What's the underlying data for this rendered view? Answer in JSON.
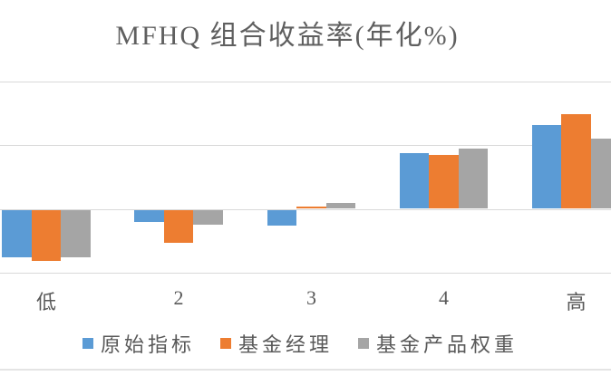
{
  "title": "MFHQ 组合收益率(年化%)",
  "chart_data": {
    "type": "bar",
    "title": "MFHQ 组合收益率(年化%)",
    "categories": [
      "低",
      "2",
      "3",
      "4",
      "高"
    ],
    "series": [
      {
        "name": "原始指标",
        "color": "#5B9BD5",
        "values": [
          -0.74,
          -0.19,
          -0.25,
          0.88,
          1.32
        ]
      },
      {
        "name": "基金经理",
        "color": "#ED7D31",
        "values": [
          -0.81,
          -0.52,
          0.03,
          0.85,
          1.48
        ]
      },
      {
        "name": "基金产品权重",
        "color": "#A5A5A5",
        "values": [
          -0.75,
          -0.24,
          0.09,
          0.95,
          1.1
        ]
      }
    ],
    "xlabel": "",
    "ylabel": "",
    "value_note": "y-axis tick labels are cropped out of the screenshot; values estimated in gridline units (1 unit = one gridline interval)",
    "gridlines_units": [
      2,
      1,
      0,
      -1
    ],
    "ylim": [
      -1.2,
      3.3
    ],
    "grid": true,
    "legend_position": "bottom",
    "plot_cropped_edges": "left and right bars clipped by image edge"
  },
  "colors": {
    "grid": "#D9D9D9",
    "text": "#595959",
    "title_text": "#5F5F5F",
    "background": "#FFFFFF",
    "bottom_rule": "#E4E4E4"
  }
}
